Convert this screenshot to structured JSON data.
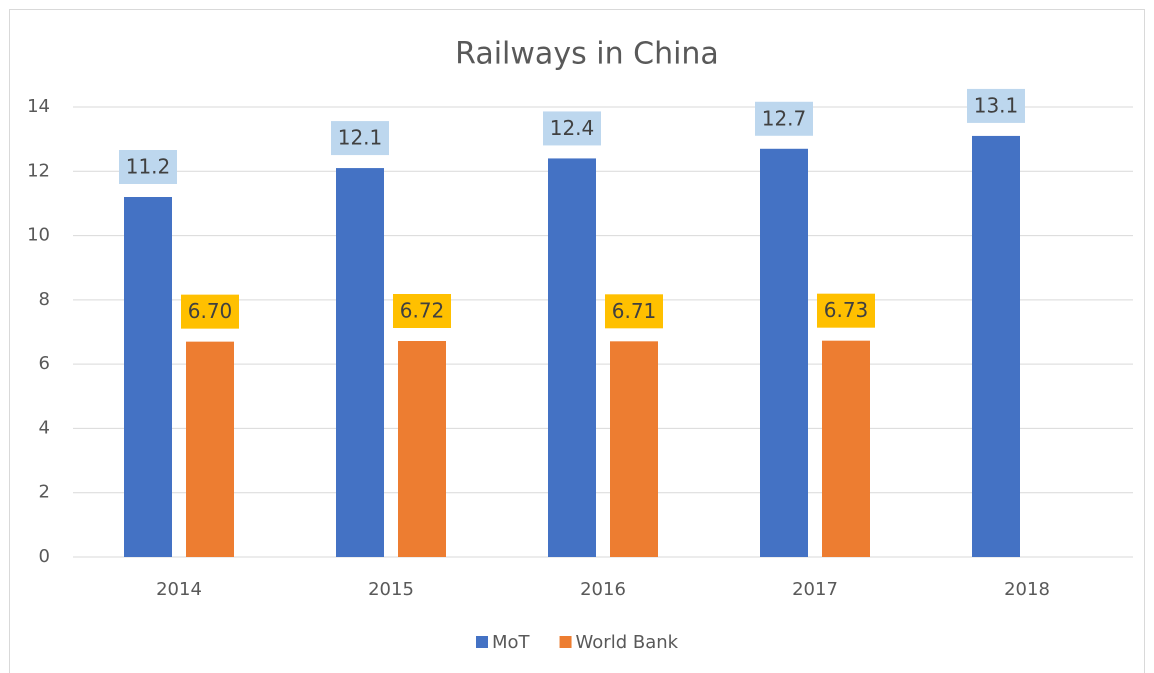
{
  "chart_data": {
    "type": "bar",
    "title": "Railways in China",
    "categories": [
      "2014",
      "2015",
      "2016",
      "2017",
      "2018"
    ],
    "series": [
      {
        "name": "MoT",
        "color": "#4472c4",
        "label_color": "#bdd7ee",
        "values": [
          11.2,
          12.1,
          12.4,
          12.7,
          13.1
        ]
      },
      {
        "name": "World Bank",
        "color": "#ed7d31",
        "label_color": "#ffc000",
        "values": [
          6.7,
          6.72,
          6.71,
          6.73,
          null
        ],
        "value_labels": [
          "6.70",
          "6.72",
          "6.71",
          "6.73",
          null
        ]
      }
    ],
    "ylim": [
      0,
      14
    ],
    "yticks": [
      0,
      2,
      4,
      6,
      8,
      10,
      12,
      14
    ],
    "grid": true,
    "legend": "bottom"
  }
}
